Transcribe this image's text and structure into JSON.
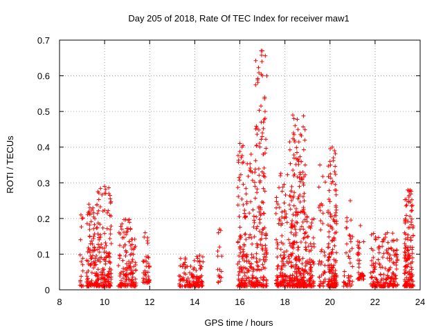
{
  "chart_data": {
    "type": "scatter",
    "title": "Day 205 of 2018, Rate Of TEC Index for receiver maw1",
    "xlabel": "GPS time / hours",
    "ylabel": "ROTI / TECUs",
    "xlim": [
      8,
      24
    ],
    "ylim": [
      0,
      0.7
    ],
    "xticks": [
      "8",
      "10",
      "12",
      "14",
      "16",
      "18",
      "20",
      "22",
      "24"
    ],
    "yticks": [
      "0",
      "0.1",
      "0.2",
      "0.3",
      "0.4",
      "0.5",
      "0.6",
      "0.7"
    ],
    "grid": true,
    "marker": "plus",
    "color": "#ff0000",
    "clusters": [
      {
        "x": [
          8.9,
          9.05
        ],
        "y": [
          0.01,
          0.21
        ],
        "n": 16
      },
      {
        "x": [
          9.2,
          9.7
        ],
        "y": [
          0.01,
          0.24
        ],
        "n": 120
      },
      {
        "x": [
          9.7,
          10.3
        ],
        "y": [
          0.01,
          0.29
        ],
        "n": 140
      },
      {
        "x": [
          10.6,
          11.4
        ],
        "y": [
          0.01,
          0.21
        ],
        "n": 140
      },
      {
        "x": [
          11.7,
          12.0
        ],
        "y": [
          0.02,
          0.16
        ],
        "n": 40
      },
      {
        "x": [
          13.3,
          13.9
        ],
        "y": [
          0.01,
          0.09
        ],
        "n": 60
      },
      {
        "x": [
          13.9,
          14.4
        ],
        "y": [
          0.01,
          0.11
        ],
        "n": 70
      },
      {
        "x": [
          15.0,
          15.2
        ],
        "y": [
          0.02,
          0.17
        ],
        "n": 14
      },
      {
        "x": [
          15.9,
          16.3
        ],
        "y": [
          0.01,
          0.41
        ],
        "n": 110
      },
      {
        "x": [
          16.3,
          16.7
        ],
        "y": [
          0.01,
          0.38
        ],
        "n": 80
      },
      {
        "x": [
          16.7,
          17.2
        ],
        "y": [
          0.01,
          0.67
        ],
        "n": 150
      },
      {
        "x": [
          17.6,
          18.2
        ],
        "y": [
          0.01,
          0.33
        ],
        "n": 120
      },
      {
        "x": [
          18.2,
          18.9
        ],
        "y": [
          0.01,
          0.49
        ],
        "n": 260
      },
      {
        "x": [
          18.9,
          19.3
        ],
        "y": [
          0.01,
          0.22
        ],
        "n": 80
      },
      {
        "x": [
          19.5,
          19.8
        ],
        "y": [
          0.01,
          0.35
        ],
        "n": 40
      },
      {
        "x": [
          19.9,
          20.3
        ],
        "y": [
          0.01,
          0.4
        ],
        "n": 160
      },
      {
        "x": [
          20.6,
          21.0
        ],
        "y": [
          0.01,
          0.25
        ],
        "n": 40
      },
      {
        "x": [
          21.2,
          21.5
        ],
        "y": [
          0.03,
          0.18
        ],
        "n": 40
      },
      {
        "x": [
          21.8,
          22.6
        ],
        "y": [
          0.01,
          0.16
        ],
        "n": 110
      },
      {
        "x": [
          22.6,
          23.0
        ],
        "y": [
          0.01,
          0.16
        ],
        "n": 70
      },
      {
        "x": [
          23.3,
          23.7
        ],
        "y": [
          0.01,
          0.28
        ],
        "n": 150
      }
    ],
    "points": [
      [
        16.95,
        0.67
      ],
      [
        17.0,
        0.67
      ],
      [
        16.98,
        0.64
      ],
      [
        17.0,
        0.6
      ],
      [
        17.1,
        0.54
      ],
      [
        17.12,
        0.5
      ],
      [
        17.05,
        0.47
      ],
      [
        16.95,
        0.47
      ],
      [
        17.0,
        0.44
      ],
      [
        18.35,
        0.49
      ],
      [
        18.4,
        0.48
      ],
      [
        18.45,
        0.46
      ],
      [
        18.38,
        0.44
      ],
      [
        18.42,
        0.42
      ],
      [
        16.0,
        0.41
      ],
      [
        16.1,
        0.4
      ],
      [
        20.1,
        0.4
      ],
      [
        20.2,
        0.39
      ],
      [
        19.55,
        0.35
      ],
      [
        17.05,
        0.38
      ],
      [
        10.0,
        0.29
      ],
      [
        10.05,
        0.27
      ],
      [
        9.3,
        0.24
      ],
      [
        9.35,
        0.23
      ],
      [
        23.45,
        0.28
      ],
      [
        23.5,
        0.26
      ],
      [
        20.9,
        0.25
      ],
      [
        8.95,
        0.21
      ],
      [
        9.0,
        0.2
      ],
      [
        21.35,
        0.18
      ],
      [
        15.1,
        0.17
      ],
      [
        15.05,
        0.16
      ],
      [
        11.8,
        0.16
      ],
      [
        22.55,
        0.16
      ],
      [
        15.1,
        0.12
      ],
      [
        18.9,
        0.35
      ],
      [
        18.8,
        0.33
      ],
      [
        17.8,
        0.32
      ],
      [
        16.5,
        0.38
      ],
      [
        16.55,
        0.33
      ]
    ]
  }
}
